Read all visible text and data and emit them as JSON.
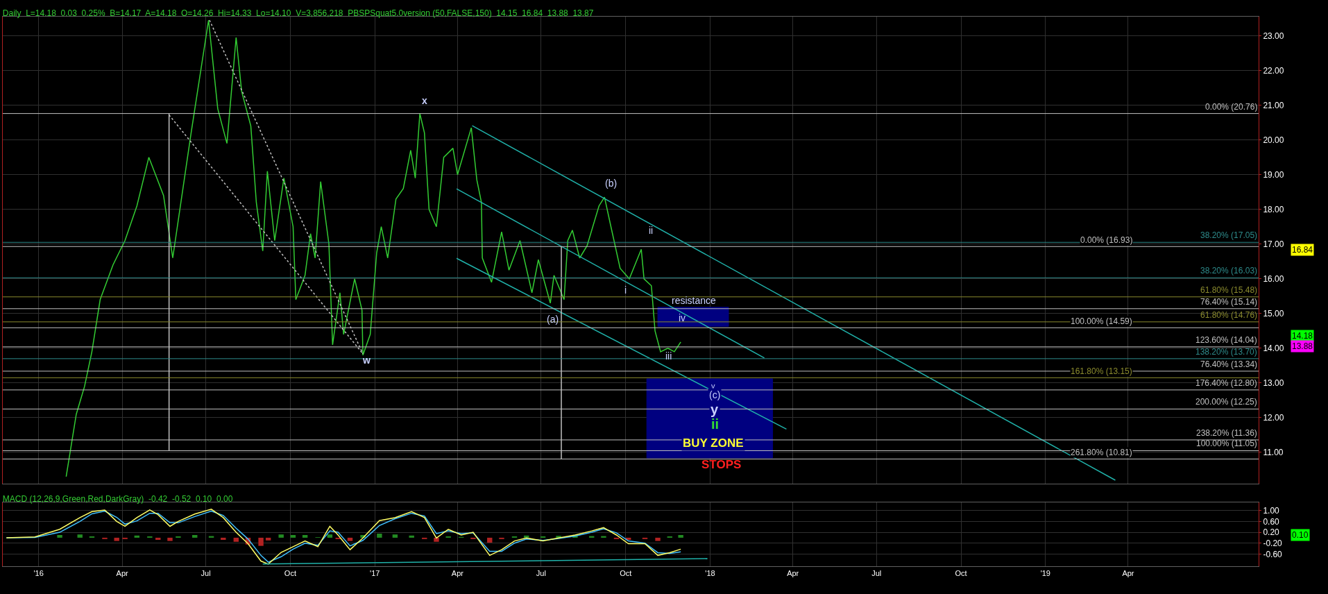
{
  "chart_data": [
    {
      "type": "line",
      "title": "Daily  L=14.18  0.03  0.25%  B=14.17  A=14.18  O=14.26  Hi=14.33  Lo=14.10  V=3,856,218  PBSPSquat5.0version (50,FALSE,150)  14.15  16.84  13.88  13.87",
      "xlim": [
        "2015-11-23",
        "2019-08-21"
      ],
      "xticks": [
        {
          "value": "2016-01-01",
          "label": null
        },
        {
          "value": "2016-04-01",
          "label": null
        },
        {
          "value": "2016-07-01",
          "label": null
        },
        {
          "value": "2016-10-01",
          "label": null
        },
        {
          "value": "2017-01-01",
          "label": null
        },
        {
          "value": "2017-04-01",
          "label": null
        },
        {
          "value": "2017-07-01",
          "label": null
        },
        {
          "value": "2017-10-01",
          "label": null
        },
        {
          "value": "2018-01-01",
          "label": null
        },
        {
          "value": "2018-04-01",
          "label": null
        },
        {
          "value": "2018-07-01",
          "label": null
        },
        {
          "value": "2018-10-01",
          "label": null
        },
        {
          "value": "2019-01-01",
          "label": null
        },
        {
          "value": "2019-04-01",
          "label": null
        }
      ],
      "ylim": [
        10.1,
        23.55
      ],
      "yticks": [
        {
          "value": 11,
          "label": "11.00"
        },
        {
          "value": 12,
          "label": "12.00"
        },
        {
          "value": 13,
          "label": "13.00"
        },
        {
          "value": 14,
          "label": "14.00"
        },
        {
          "value": 15,
          "label": "15.00"
        },
        {
          "value": 16,
          "label": "16.00"
        },
        {
          "value": 17,
          "label": "17.00"
        },
        {
          "value": 18,
          "label": "18.00"
        },
        {
          "value": 19,
          "label": "19.00"
        },
        {
          "value": 20,
          "label": "20.00"
        },
        {
          "value": 21,
          "label": "21.00"
        },
        {
          "value": 22,
          "label": "22.00"
        },
        {
          "value": 23,
          "label": "23.00"
        }
      ],
      "tick_labels": "y",
      "grid": true,
      "series": [
        {
          "type": "area",
          "color": "#000080",
          "x": [
            "2017-11-05",
            "2018-01-21",
            "2018-01-21",
            "2017-11-05",
            "2017-11-05"
          ],
          "values": [
            15.18,
            15.18,
            14.63,
            14.63,
            15.18
          ]
        },
        {
          "type": "area",
          "color": "#000080",
          "x": [
            "2017-10-24",
            "2018-03-10",
            "2018-03-10",
            "2017-10-24",
            "2017-10-24"
          ],
          "values": [
            13.12,
            13.12,
            10.84,
            10.84,
            13.12
          ]
        },
        {
          "color": "#33cc33",
          "x": [
            "2016-01-31",
            "2016-02-11",
            "2016-02-20",
            "2016-02-28",
            "2016-03-08",
            "2016-03-22",
            "2016-04-04",
            "2016-04-17",
            "2016-04-30",
            "2016-05-16",
            "2016-05-26",
            "2016-06-15",
            "2016-07-04",
            "2016-07-14",
            "2016-07-24",
            "2016-08-03",
            "2016-08-09",
            "2016-08-19",
            "2016-08-25",
            "2016-09-01",
            "2016-09-06",
            "2016-09-14",
            "2016-09-24",
            "2016-10-04",
            "2016-10-07",
            "2016-10-17",
            "2016-10-23",
            "2016-10-28",
            "2016-11-03",
            "2016-11-12",
            "2016-11-16",
            "2016-11-24",
            "2016-11-28",
            "2016-12-10",
            "2016-12-18",
            "2016-12-19",
            "2016-12-27",
            "2017-01-03",
            "2017-01-08",
            "2017-01-15",
            "2017-01-24",
            "2017-02-01",
            "2017-02-09",
            "2017-02-14",
            "2017-02-19",
            "2017-02-24",
            "2017-03-01",
            "2017-03-09",
            "2017-03-17",
            "2017-03-27",
            "2017-04-01",
            "2017-04-16",
            "2017-04-22",
            "2017-04-27",
            "2017-04-28",
            "2017-05-08",
            "2017-05-19",
            "2017-05-27",
            "2017-06-08",
            "2017-06-21",
            "2017-06-28",
            "2017-07-11",
            "2017-07-15",
            "2017-07-26",
            "2017-07-30",
            "2017-08-04",
            "2017-08-12",
            "2017-08-20",
            "2017-09-02",
            "2017-09-08",
            "2017-09-15",
            "2017-09-25",
            "2017-10-05",
            "2017-10-18",
            "2017-10-21",
            "2017-10-29",
            "2017-11-02",
            "2017-11-08",
            "2017-11-16",
            "2017-11-23",
            "2017-11-30"
          ],
          "values": [
            10.3,
            12.1,
            12.9,
            13.9,
            15.4,
            16.4,
            17.1,
            18.1,
            19.5,
            18.4,
            16.6,
            20.2,
            23.45,
            20.9,
            19.9,
            22.95,
            21.4,
            20.4,
            18.2,
            16.8,
            19.1,
            17.1,
            18.9,
            17.5,
            15.4,
            16.1,
            17.3,
            16.6,
            18.8,
            17.0,
            14.1,
            15.6,
            14.4,
            16.0,
            15.1,
            13.8,
            14.4,
            16.75,
            17.5,
            16.6,
            18.3,
            18.6,
            19.7,
            18.9,
            20.76,
            20.2,
            18.0,
            17.5,
            19.5,
            19.76,
            19.0,
            20.35,
            18.85,
            18.2,
            16.6,
            15.9,
            17.35,
            16.25,
            17.1,
            15.6,
            16.55,
            15.3,
            16.1,
            15.4,
            17.1,
            17.4,
            16.6,
            16.95,
            18.1,
            18.35,
            17.5,
            16.3,
            16.0,
            16.85,
            16.0,
            15.8,
            14.5,
            13.9,
            14.0,
            13.9,
            14.18
          ]
        },
        {
          "color": "#20b2aa",
          "x": [
            "2017-04-17",
            "2019-03-18"
          ],
          "values": [
            20.41,
            10.2
          ]
        },
        {
          "color": "#20b2aa",
          "x": [
            "2017-03-31",
            "2018-03-01"
          ],
          "values": [
            18.59,
            13.72
          ]
        },
        {
          "color": "#20b2aa",
          "x": [
            "2017-03-31",
            "2018-03-25"
          ],
          "values": [
            16.59,
            11.67
          ]
        },
        {
          "color": "#c0c0c0",
          "line_style": "dotted",
          "x": [
            "2016-05-22",
            "2016-12-19"
          ],
          "values": [
            20.72,
            13.84
          ]
        },
        {
          "color": "#c0c0c0",
          "line_style": "dotted",
          "x": [
            "2016-07-05",
            "2016-12-19"
          ],
          "values": [
            23.45,
            13.84
          ]
        },
        {
          "color": "#c0c0c0",
          "x": [
            "2016-05-22",
            "2016-05-22"
          ],
          "values": [
            20.76,
            11.05
          ]
        },
        {
          "color": "#c0c0c0",
          "x": [
            "2017-07-23",
            "2017-07-23"
          ],
          "values": [
            16.93,
            10.81
          ]
        }
      ],
      "ref_lines": [
        {
          "axis": "y",
          "value": 20.76,
          "label": "0.00% (20.76)",
          "color": "#c0c0c0"
        },
        {
          "axis": "y",
          "value": 17.05,
          "label": "38.20% (17.05)",
          "color": "#2e8b8b"
        },
        {
          "axis": "y",
          "value": 16.93,
          "label": "0.00% (16.93)",
          "color": "#c0c0c0"
        },
        {
          "axis": "y",
          "value": 16.03,
          "label": "38.20% (16.03)",
          "color": "#2e8b8b"
        },
        {
          "axis": "y",
          "value": 15.48,
          "label": "61.80% (15.48)",
          "color": "#8b8b2e"
        },
        {
          "axis": "y",
          "value": 15.14,
          "label": "76.40% (15.14)",
          "color": "#c0c0c0"
        },
        {
          "axis": "y",
          "value": 14.76,
          "label": "61.80% (14.76)",
          "color": "#8b8b2e"
        },
        {
          "axis": "y",
          "value": 14.59,
          "label": "100.00% (14.59)",
          "color": "#c0c0c0"
        },
        {
          "axis": "y",
          "value": 14.04,
          "label": "123.60% (14.04)",
          "color": "#c0c0c0"
        },
        {
          "axis": "y",
          "value": 13.7,
          "label": "138.20% (13.70)",
          "color": "#2e8b8b"
        },
        {
          "axis": "y",
          "value": 13.34,
          "label": "76.40% (13.34)",
          "color": "#c0c0c0"
        },
        {
          "axis": "y",
          "value": 13.15,
          "label": "161.80% (13.15)",
          "color": "#8b8b2e"
        },
        {
          "axis": "y",
          "value": 12.8,
          "label": "176.40% (12.80)",
          "color": "#c0c0c0"
        },
        {
          "axis": "y",
          "value": 12.25,
          "label": "200.00% (12.25)",
          "color": "#c0c0c0"
        },
        {
          "axis": "y",
          "value": 11.36,
          "label": "238.20% (11.36)",
          "color": "#c0c0c0"
        },
        {
          "axis": "y",
          "value": 11.05,
          "label": "100.00% (11.05)",
          "color": "#c0c0c0"
        },
        {
          "axis": "y",
          "value": 10.81,
          "label": "261.80% (10.81)",
          "color": "#c0c0c0"
        }
      ],
      "annotations": [
        "x",
        "w",
        "(b)",
        "(a)",
        "i",
        "ii",
        "resistance",
        "iv",
        "iii",
        "v",
        "(c)",
        "y",
        "ii",
        "BUY ZONE",
        "STOPS",
        "16.84",
        "14.18",
        "13.88"
      ]
    },
    {
      "type": "line",
      "title": "MACD (12,26,9,Green,Red,DarkGray)  -0.42  -0.52  0.10  0.00",
      "xlim": [
        "2015-11-23",
        "2019-08-21"
      ],
      "xticks": [
        {
          "value": "2016-01-01",
          "label": "'16"
        },
        {
          "value": "2016-04-01",
          "label": "Apr"
        },
        {
          "value": "2016-07-01",
          "label": "Jul"
        },
        {
          "value": "2016-10-01",
          "label": "Oct"
        },
        {
          "value": "2017-01-01",
          "label": "'17"
        },
        {
          "value": "2017-04-01",
          "label": "Apr"
        },
        {
          "value": "2017-07-01",
          "label": "Jul"
        },
        {
          "value": "2017-10-01",
          "label": "Oct"
        },
        {
          "value": "2018-01-01",
          "label": "'18"
        },
        {
          "value": "2018-04-01",
          "label": "Apr"
        },
        {
          "value": "2018-07-01",
          "label": "Jul"
        },
        {
          "value": "2018-10-01",
          "label": "Oct"
        },
        {
          "value": "2019-01-01",
          "label": "'19"
        },
        {
          "value": "2019-04-01",
          "label": "Apr"
        }
      ],
      "ylim": [
        -1.05,
        1.3
      ],
      "yticks": [
        {
          "value": 1,
          "label": "1.00"
        },
        {
          "value": 0.6,
          "label": "0.60"
        },
        {
          "value": 0.2,
          "label": "0.20"
        },
        {
          "value": -0.2,
          "label": "-0.20"
        },
        {
          "value": -0.6,
          "label": "-0.60"
        }
      ],
      "grid": true,
      "series": [
        {
          "type": "bar",
          "colors": [
            "#228b22",
            "#228b22",
            "#228b22",
            "#b22222",
            "#b22222",
            "#b22222",
            "#228b22",
            "#228b22",
            "#b22222",
            "#b22222",
            "#228b22",
            "#228b22",
            "#228b22",
            "#b22222",
            "#b22222",
            "#b22222",
            "#b22222",
            "#b22222",
            "#228b22",
            "#228b22",
            "#228b22",
            "#228b22",
            "#228b22",
            "#b22222",
            "#b22222",
            "#228b22",
            "#228b22",
            "#228b22",
            "#228b22",
            "#b22222",
            "#b22222",
            "#228b22",
            "#228b22",
            "#b22222",
            "#b22222",
            "#b22222",
            "#228b22",
            "#228b22",
            "#228b22",
            "#228b22",
            "#228b22",
            "#228b22",
            "#228b22",
            "#b22222",
            "#b22222",
            "#b22222",
            "#b22222",
            "#228b22",
            "#228b22"
          ],
          "x": [
            "2016-01-24",
            "2016-02-15",
            "2016-02-28",
            "2016-03-13",
            "2016-03-26",
            "2016-04-04",
            "2016-04-17",
            "2016-05-01",
            "2016-05-10",
            "2016-05-23",
            "2016-06-01",
            "2016-06-19",
            "2016-07-07",
            "2016-07-20",
            "2016-08-03",
            "2016-08-16",
            "2016-08-30",
            "2016-09-07",
            "2016-09-21",
            "2016-10-04",
            "2016-10-17",
            "2016-10-31",
            "2016-11-13",
            "2016-11-22",
            "2016-12-05",
            "2016-12-19",
            "2017-01-06",
            "2017-01-23",
            "2017-02-10",
            "2017-02-24",
            "2017-03-09",
            "2017-03-22",
            "2017-04-05",
            "2017-04-18",
            "2017-05-06",
            "2017-05-19",
            "2017-06-02",
            "2017-06-15",
            "2017-07-03",
            "2017-07-20",
            "2017-08-07",
            "2017-08-25",
            "2017-09-07",
            "2017-09-21",
            "2017-10-04",
            "2017-10-22",
            "2017-11-05",
            "2017-11-18",
            "2017-11-30"
          ],
          "values": [
            0.1,
            0.12,
            0.05,
            -0.05,
            -0.12,
            -0.05,
            0.08,
            0.05,
            -0.08,
            -0.12,
            0.05,
            0.1,
            0.06,
            -0.08,
            -0.15,
            -0.25,
            -0.3,
            -0.1,
            0.12,
            0.1,
            0.1,
            0.02,
            0.12,
            -0.05,
            -0.12,
            0.1,
            0.15,
            0.12,
            0.08,
            -0.05,
            -0.15,
            0.05,
            0.03,
            -0.05,
            -0.18,
            -0.05,
            0.05,
            0.08,
            0.05,
            0.07,
            0.08,
            0.06,
            0.06,
            -0.05,
            -0.08,
            -0.05,
            -0.12,
            0.05,
            0.1
          ]
        },
        {
          "color": "#40c0ff",
          "x": [
            "2015-11-27",
            "2015-12-28",
            "2016-01-24",
            "2016-02-15",
            "2016-02-28",
            "2016-03-13",
            "2016-03-26",
            "2016-04-04",
            "2016-04-17",
            "2016-05-01",
            "2016-05-10",
            "2016-05-23",
            "2016-06-01",
            "2016-06-19",
            "2016-07-07",
            "2016-07-20",
            "2016-08-03",
            "2016-08-16",
            "2016-08-30",
            "2016-09-07",
            "2016-09-21",
            "2016-10-04",
            "2016-10-17",
            "2016-10-31",
            "2016-11-13",
            "2016-11-22",
            "2016-12-05",
            "2016-12-19",
            "2017-01-06",
            "2017-01-23",
            "2017-02-10",
            "2017-02-24",
            "2017-03-09",
            "2017-03-22",
            "2017-04-05",
            "2017-04-18",
            "2017-05-06",
            "2017-05-19",
            "2017-06-02",
            "2017-06-15",
            "2017-07-03",
            "2017-07-20",
            "2017-08-07",
            "2017-08-25",
            "2017-09-07",
            "2017-09-21",
            "2017-10-04",
            "2017-10-22",
            "2017-11-05",
            "2017-11-18",
            "2017-11-30"
          ],
          "values": [
            0,
            0.01,
            0.2,
            0.6,
            0.88,
            0.98,
            0.75,
            0.5,
            0.62,
            0.9,
            0.9,
            0.55,
            0.55,
            0.78,
            0.98,
            0.82,
            0.35,
            -0.05,
            -0.65,
            -0.9,
            -0.7,
            -0.42,
            -0.2,
            -0.28,
            0.25,
            0.2,
            -0.3,
            -0.1,
            0.45,
            0.7,
            0.9,
            0.8,
            0.15,
            0.25,
            0.15,
            0.18,
            -0.5,
            -0.5,
            -0.2,
            -0.05,
            -0.1,
            -0.03,
            0.06,
            0.2,
            0.33,
            0.18,
            -0.12,
            -0.2,
            -0.55,
            -0.58,
            -0.52
          ]
        },
        {
          "color": "#ffff66",
          "x": [
            "2015-11-27",
            "2015-12-28",
            "2016-01-24",
            "2016-02-15",
            "2016-02-28",
            "2016-03-13",
            "2016-03-26",
            "2016-04-04",
            "2016-04-17",
            "2016-05-01",
            "2016-05-10",
            "2016-05-23",
            "2016-06-01",
            "2016-06-19",
            "2016-07-07",
            "2016-07-20",
            "2016-08-03",
            "2016-08-16",
            "2016-08-30",
            "2016-09-07",
            "2016-09-21",
            "2016-10-04",
            "2016-10-17",
            "2016-10-31",
            "2016-11-13",
            "2016-11-22",
            "2016-12-05",
            "2016-12-19",
            "2017-01-06",
            "2017-01-23",
            "2017-02-10",
            "2017-02-24",
            "2017-03-09",
            "2017-03-22",
            "2017-04-05",
            "2017-04-18",
            "2017-05-06",
            "2017-05-19",
            "2017-06-02",
            "2017-06-15",
            "2017-07-03",
            "2017-07-20",
            "2017-08-07",
            "2017-08-25",
            "2017-09-07",
            "2017-09-21",
            "2017-10-04",
            "2017-10-22",
            "2017-11-05",
            "2017-11-18",
            "2017-11-30"
          ],
          "values": [
            0,
            0.03,
            0.31,
            0.74,
            0.96,
            1.02,
            0.6,
            0.42,
            0.74,
            1.02,
            0.85,
            0.42,
            0.6,
            0.87,
            1.05,
            0.74,
            0.2,
            -0.22,
            -0.86,
            -0.97,
            -0.54,
            -0.33,
            -0.12,
            -0.33,
            0.42,
            0.1,
            -0.44,
            -0.01,
            0.63,
            0.74,
            0.96,
            0.74,
            -0.01,
            0.31,
            0.1,
            0.2,
            -0.65,
            -0.44,
            -0.12,
            -0.01,
            -0.12,
            -0.01,
            0.1,
            0.25,
            0.37,
            0.1,
            -0.22,
            -0.22,
            -0.65,
            -0.55,
            -0.42
          ]
        },
        {
          "color": "#20b2aa",
          "x": [
            "2016-09-01",
            "2017-12-29"
          ],
          "values": [
            -0.97,
            -0.77
          ]
        }
      ],
      "annotations": [
        "0.10"
      ]
    }
  ]
}
